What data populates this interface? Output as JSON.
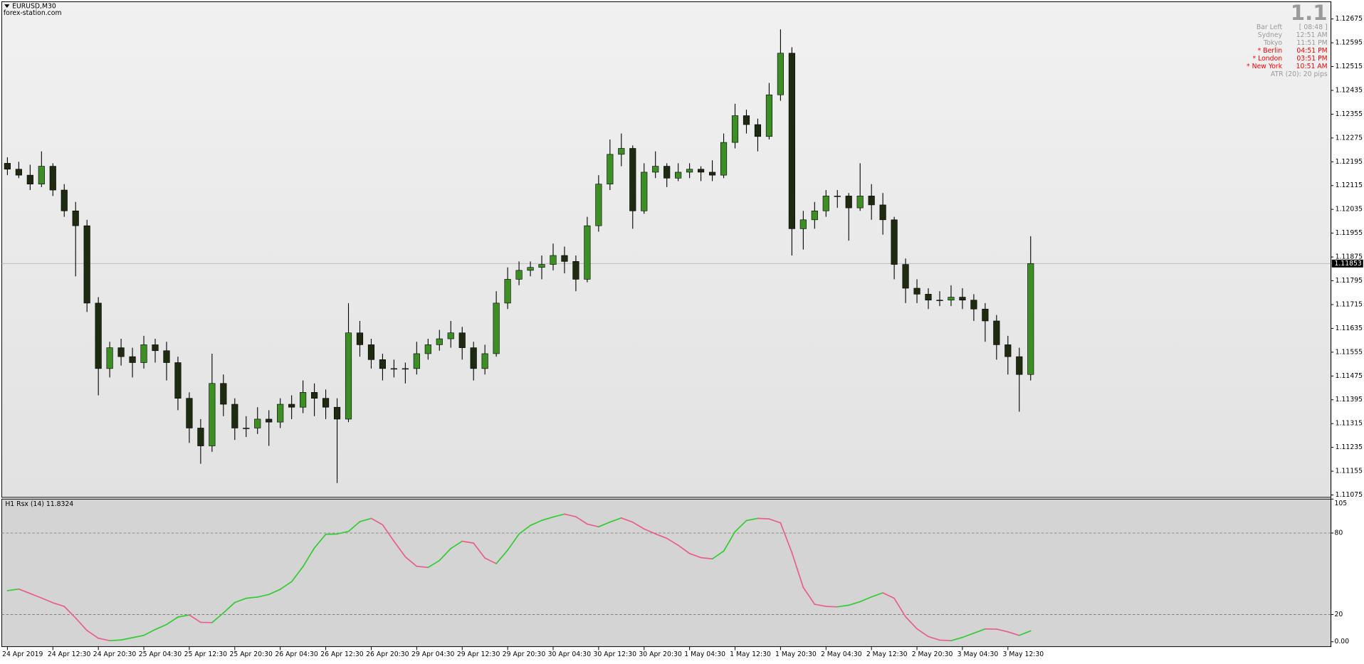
{
  "chart_data": [
    {
      "type": "candlestick",
      "title": "EURUSD,M30",
      "subtitle": "forex-station.com",
      "up_color": "#3d8f25",
      "down_color": "#1f2a10",
      "wick_color": "#000000",
      "ylim": [
        1.1107,
        1.1273
      ],
      "yticks": [
        1.12675,
        1.12595,
        1.12515,
        1.12435,
        1.12355,
        1.12275,
        1.12195,
        1.12115,
        1.12035,
        1.11955,
        1.11875,
        1.11795,
        1.11715,
        1.11635,
        1.11555,
        1.11475,
        1.11395,
        1.11315,
        1.11235,
        1.11155,
        1.11075
      ],
      "last_price": 1.11853,
      "categories": [
        "24 Apr 2019",
        null,
        null,
        null,
        "24 Apr 12:30",
        null,
        null,
        null,
        "24 Apr 20:30",
        null,
        null,
        null,
        "25 Apr 04:30",
        null,
        null,
        null,
        "25 Apr 12:30",
        null,
        null,
        null,
        "25 Apr 20:30",
        null,
        null,
        null,
        "26 Apr 04:30",
        null,
        null,
        null,
        "26 Apr 12:30",
        null,
        null,
        null,
        "26 Apr 20:30",
        null,
        null,
        null,
        "29 Apr 04:30",
        null,
        null,
        null,
        "29 Apr 12:30",
        null,
        null,
        null,
        "29 Apr 20:30",
        null,
        null,
        null,
        "30 Apr 04:30",
        null,
        null,
        null,
        "30 Apr 12:30",
        null,
        null,
        null,
        "30 Apr 20:30",
        null,
        null,
        null,
        "1 May 04:30",
        null,
        null,
        null,
        "1 May 12:30",
        null,
        null,
        null,
        "1 May 20:30",
        null,
        null,
        null,
        "2 May 04:30",
        null,
        null,
        null,
        "2 May 12:30",
        null,
        null,
        null,
        "2 May 20:30",
        null,
        null,
        null,
        "3 May 04:30",
        null,
        null,
        null,
        "3 May 12:30",
        null,
        null
      ],
      "values": [
        [
          1.1219,
          1.1221,
          1.1215,
          1.1217
        ],
        [
          1.1217,
          1.12195,
          1.1214,
          1.1215
        ],
        [
          1.1215,
          1.12185,
          1.121,
          1.1212
        ],
        [
          1.1212,
          1.1223,
          1.1211,
          1.1218
        ],
        [
          1.1218,
          1.1219,
          1.1208,
          1.121
        ],
        [
          1.121,
          1.1212,
          1.1201,
          1.1203
        ],
        [
          1.1203,
          1.1206,
          1.1181,
          1.1198
        ],
        [
          1.1198,
          1.12,
          1.1169,
          1.1172
        ],
        [
          1.1172,
          1.1174,
          1.1141,
          1.115
        ],
        [
          1.115,
          1.1159,
          1.1147,
          1.1157
        ],
        [
          1.1157,
          1.116,
          1.1151,
          1.1154
        ],
        [
          1.1154,
          1.1157,
          1.1147,
          1.1152
        ],
        [
          1.1152,
          1.1161,
          1.115,
          1.1158
        ],
        [
          1.1158,
          1.116,
          1.1152,
          1.1156
        ],
        [
          1.1156,
          1.1159,
          1.1146,
          1.1152
        ],
        [
          1.1152,
          1.1154,
          1.1136,
          1.114
        ],
        [
          1.114,
          1.1142,
          1.1125,
          1.113
        ],
        [
          1.113,
          1.1133,
          1.1118,
          1.1124
        ],
        [
          1.1124,
          1.1155,
          1.1122,
          1.1145
        ],
        [
          1.1145,
          1.1148,
          1.1134,
          1.1138
        ],
        [
          1.1138,
          1.114,
          1.1126,
          1.113
        ],
        [
          1.113,
          1.1134,
          1.1127,
          1.113
        ],
        [
          1.113,
          1.1137,
          1.1128,
          1.1133
        ],
        [
          1.1133,
          1.1136,
          1.1124,
          1.1132
        ],
        [
          1.1132,
          1.114,
          1.113,
          1.1138
        ],
        [
          1.1138,
          1.1141,
          1.1133,
          1.1137
        ],
        [
          1.1137,
          1.1146,
          1.1135,
          1.1142
        ],
        [
          1.1142,
          1.1145,
          1.1134,
          1.114
        ],
        [
          1.114,
          1.1143,
          1.1133,
          1.1137
        ],
        [
          1.1137,
          1.114,
          1.11115,
          1.1133
        ],
        [
          1.1133,
          1.1172,
          1.1132,
          1.1162
        ],
        [
          1.1162,
          1.1166,
          1.1154,
          1.1158
        ],
        [
          1.1158,
          1.116,
          1.115,
          1.1153
        ],
        [
          1.1153,
          1.1155,
          1.1146,
          1.115
        ],
        [
          1.115,
          1.1153,
          1.1147,
          1.115
        ],
        [
          1.115,
          1.1152,
          1.1145,
          1.115
        ],
        [
          1.115,
          1.1159,
          1.1148,
          1.1155
        ],
        [
          1.1155,
          1.116,
          1.1153,
          1.1158
        ],
        [
          1.1158,
          1.1163,
          1.1156,
          1.116
        ],
        [
          1.116,
          1.1166,
          1.1157,
          1.1162
        ],
        [
          1.1162,
          1.1164,
          1.1153,
          1.1157
        ],
        [
          1.1157,
          1.1159,
          1.1146,
          1.115
        ],
        [
          1.115,
          1.1158,
          1.1148,
          1.1155
        ],
        [
          1.1155,
          1.1176,
          1.1154,
          1.1172
        ],
        [
          1.1172,
          1.1184,
          1.117,
          1.118
        ],
        [
          1.118,
          1.1186,
          1.1178,
          1.1183
        ],
        [
          1.1183,
          1.1186,
          1.1181,
          1.1184
        ],
        [
          1.1184,
          1.1188,
          1.118,
          1.1185
        ],
        [
          1.1185,
          1.1192,
          1.1183,
          1.1188
        ],
        [
          1.1188,
          1.1191,
          1.1182,
          1.1186
        ],
        [
          1.1186,
          1.1188,
          1.1176,
          1.118
        ],
        [
          1.118,
          1.1201,
          1.1179,
          1.1198
        ],
        [
          1.1198,
          1.1215,
          1.1196,
          1.1212
        ],
        [
          1.1212,
          1.1227,
          1.121,
          1.1222
        ],
        [
          1.1222,
          1.1229,
          1.1218,
          1.1224
        ],
        [
          1.1224,
          1.1225,
          1.1197,
          1.1203
        ],
        [
          1.1203,
          1.1219,
          1.1202,
          1.1216
        ],
        [
          1.1216,
          1.1223,
          1.1214,
          1.1218
        ],
        [
          1.1218,
          1.1219,
          1.1211,
          1.1214
        ],
        [
          1.1214,
          1.1219,
          1.1213,
          1.1216
        ],
        [
          1.1216,
          1.1219,
          1.1214,
          1.1217
        ],
        [
          1.1217,
          1.1218,
          1.1213,
          1.1216
        ],
        [
          1.1216,
          1.122,
          1.1213,
          1.1215
        ],
        [
          1.1215,
          1.1229,
          1.1214,
          1.1226
        ],
        [
          1.1226,
          1.1239,
          1.1224,
          1.1235
        ],
        [
          1.1235,
          1.1237,
          1.1229,
          1.1232
        ],
        [
          1.1232,
          1.1234,
          1.1223,
          1.1228
        ],
        [
          1.1228,
          1.1246,
          1.1227,
          1.1242
        ],
        [
          1.1242,
          1.1264,
          1.124,
          1.1256
        ],
        [
          1.1256,
          1.1258,
          1.1188,
          1.1197
        ],
        [
          1.1197,
          1.1203,
          1.119,
          1.12
        ],
        [
          1.12,
          1.1206,
          1.1197,
          1.1203
        ],
        [
          1.1203,
          1.121,
          1.1201,
          1.1208
        ],
        [
          1.1208,
          1.121,
          1.1204,
          1.1208
        ],
        [
          1.1208,
          1.1209,
          1.1193,
          1.1204
        ],
        [
          1.1204,
          1.1219,
          1.1203,
          1.1208
        ],
        [
          1.1208,
          1.1212,
          1.12,
          1.1205
        ],
        [
          1.1205,
          1.1209,
          1.1195,
          1.12
        ],
        [
          1.12,
          1.1201,
          1.118,
          1.1185
        ],
        [
          1.1185,
          1.1187,
          1.1172,
          1.1177
        ],
        [
          1.1177,
          1.118,
          1.1172,
          1.1175
        ],
        [
          1.1175,
          1.1177,
          1.117,
          1.1173
        ],
        [
          1.1173,
          1.1176,
          1.1171,
          1.1173
        ],
        [
          1.1173,
          1.1178,
          1.1171,
          1.1174
        ],
        [
          1.1174,
          1.1177,
          1.117,
          1.1173
        ],
        [
          1.1173,
          1.1175,
          1.1166,
          1.117
        ],
        [
          1.117,
          1.1172,
          1.1159,
          1.1166
        ],
        [
          1.1166,
          1.1168,
          1.1153,
          1.1158
        ],
        [
          1.1158,
          1.1161,
          1.1148,
          1.1154
        ],
        [
          1.1154,
          1.1157,
          1.11355,
          1.1148
        ],
        [
          1.1148,
          1.11945,
          1.1146,
          1.11853
        ]
      ]
    },
    {
      "type": "line",
      "title": "H1  Rsx (14) 11.8324",
      "up_color": "#33cc33",
      "down_color": "#e8608a",
      "level_color": "#777777",
      "ylim": [
        -3.6,
        105
      ],
      "yticks": [
        105,
        80,
        20,
        {
          "value": 0,
          "label": "0.00"
        }
      ],
      "levels": [
        80,
        20
      ],
      "values": [
        37.6,
        38.8,
        35.5,
        32.2,
        28.7,
        26,
        17.5,
        8.3,
        2.6,
        0.8,
        1.3,
        3,
        4.7,
        9,
        12.7,
        18.2,
        19.7,
        14.3,
        14.1,
        21.2,
        28.9,
        32,
        32.9,
        34.8,
        38.6,
        44.2,
        55.3,
        69,
        79.1,
        79.3,
        81.2,
        88.4,
        90.8,
        86.1,
        74,
        62.5,
        55.5,
        54.7,
        59.8,
        68.6,
        74,
        72.6,
        61.6,
        57.5,
        67.4,
        79.3,
        85.6,
        89.3,
        91.8,
        94,
        92,
        86.6,
        84.6,
        88.1,
        91.1,
        88,
        83,
        79.4,
        76.1,
        71,
        65,
        61.9,
        61,
        66.7,
        81,
        89.2,
        90.8,
        90.4,
        87.5,
        65.6,
        40,
        27.6,
        26,
        25.7,
        26.9,
        29.5,
        33,
        36,
        32,
        18.4,
        9.5,
        3.8,
        1.2,
        0.8,
        3.2,
        6.3,
        9.4,
        9.3,
        7.3,
        4.7,
        8
      ]
    }
  ],
  "info_panel": {
    "big": "1.1",
    "rows": [
      {
        "label": "Bar Left",
        "value": "[ 08:48 ]",
        "color": "#9a9a9a"
      },
      {
        "label": "Sydney",
        "value": "12:51 AM",
        "color": "#9a9a9a"
      },
      {
        "label": "Tokyo",
        "value": "11:51 PM",
        "color": "#9a9a9a"
      },
      {
        "label": "* Berlin",
        "value": "04:51 PM",
        "color": "#ff0000"
      },
      {
        "label": "* London",
        "value": "03:51 PM",
        "color": "#ff0000"
      },
      {
        "label": "* New York",
        "value": "10:51 AM",
        "color": "#ff0000"
      }
    ],
    "atr": "ATR (20): 20 pips"
  }
}
